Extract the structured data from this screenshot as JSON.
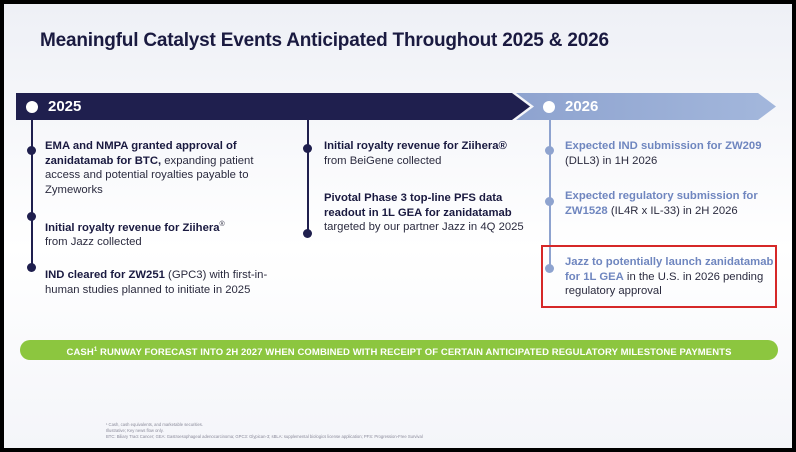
{
  "title": "Meaningful Catalyst Events Anticipated Throughout 2025 & 2026",
  "year_2025": "2025",
  "year_2026": "2026",
  "col1": [
    {
      "bold": "EMA and NMPA granted approval of zanidatamab for BTC,",
      "rest": " expanding patient access and potential royalties payable to Zymeworks"
    },
    {
      "bold": "Initial royalty revenue for Ziihera",
      "sup": "®",
      "rest": "from Jazz collected"
    },
    {
      "bold": "IND cleared for ZW251",
      "rest": " (GPC3) with first-in-human studies planned to initiate in 2025"
    }
  ],
  "col2": [
    {
      "bold": "Initial royalty revenue for Ziihera®",
      "rest": "from BeiGene collected"
    },
    {
      "bold": "Pivotal Phase 3 top-line PFS data readout in 1L GEA for zanidatamab",
      "rest": " targeted by our partner Jazz in 4Q 2025"
    }
  ],
  "col3": [
    {
      "bold": "Expected IND submission for ZW209",
      "rest": " (DLL3) in 1H 2026"
    },
    {
      "bold": "Expected regulatory submission for ZW1528",
      "rest": " (IL4R x IL-33) in 2H 2026"
    },
    {
      "bold": "Jazz to potentially launch zanidatamab for 1L GEA",
      "rest": " in the U.S. in 2026 pending regulatory approval"
    }
  ],
  "cash_banner": {
    "pre": "CASH",
    "sup": "1",
    "post": " RUNWAY FORECAST INTO 2H 2027 WHEN COMBINED WITH RECEIPT OF CERTAIN ANTICIPATED REGULATORY MILESTONE PAYMENTS"
  },
  "footnotes": [
    "¹ Cash, cash equivalents, and marketable securities.",
    "Illustrative; Key news flow only.",
    "BTC: Biliary Tract Cancer; GEA: Gastroesophageal adenocarcinoma; GPC3: Glypican-3; sBLA: supplemental biologics license application; PFS: Progression-Free Survival"
  ],
  "colors": {
    "navy": "#1f1f4e",
    "periwinkle": "#8ea3cf",
    "green": "#8cc63f",
    "highlight": "#d62828"
  }
}
